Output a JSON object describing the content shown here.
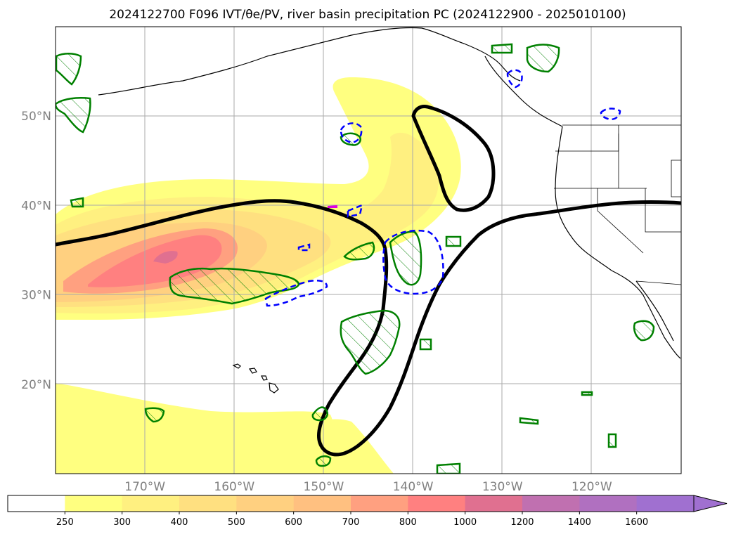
{
  "title": "2024122700 F096 IVT/θe/PV, river basin precipitation PC (2024122900 - 2025010100)",
  "map": {
    "projection": "PlateCarree",
    "lon_range": [
      -180,
      -110
    ],
    "lat_range": [
      10,
      60
    ],
    "lat_ticks": [
      {
        "value": 50,
        "label": "50°N"
      },
      {
        "value": 40,
        "label": "40°N"
      },
      {
        "value": 30,
        "label": "30°N"
      },
      {
        "value": 20,
        "label": "20°N"
      }
    ],
    "lon_ticks": [
      {
        "value": -170,
        "label": "170°W"
      },
      {
        "value": -160,
        "label": "160°W"
      },
      {
        "value": -150,
        "label": "150°W"
      },
      {
        "value": -140,
        "label": "140°W"
      },
      {
        "value": -130,
        "label": "130°W"
      },
      {
        "value": -120,
        "label": "120°W"
      }
    ],
    "gridlines": true,
    "colors": {
      "grid": "#aaaaaa",
      "coast": "#000000",
      "theta_e_contour": "#000000",
      "pv_contour": "#008000",
      "precip_contour": "#0000ff"
    }
  },
  "colorbar": {
    "extend": "max",
    "levels": [
      "250",
      "300",
      "400",
      "500",
      "600",
      "700",
      "800",
      "1000",
      "1200",
      "1400",
      "1600"
    ],
    "colors": [
      "#ffffff",
      "#ffff80",
      "#fff080",
      "#ffe080",
      "#ffd080",
      "#ffc080",
      "#ffa080",
      "#ff8080",
      "#e07090",
      "#c070b0",
      "#b070c0",
      "#a070d0"
    ]
  },
  "chart_data": {
    "type": "map",
    "field": "IVT (kg m-1 s-1)",
    "ivt_regions": [
      {
        "level": 250,
        "description": "broad atmospheric river band from central Pacific toward Pacific Northwest"
      },
      {
        "level": 1000,
        "peak_center_lon": -168,
        "peak_center_lat": 35
      }
    ],
    "theta_e_line": "thick black contour from 180°W 35°N eastward to 147°W 36°N, south to 150°W 12°N, northeast to 120°W 40°N",
    "pv_features": "green hatched contours",
    "precip_features": "blue dashed contours"
  }
}
